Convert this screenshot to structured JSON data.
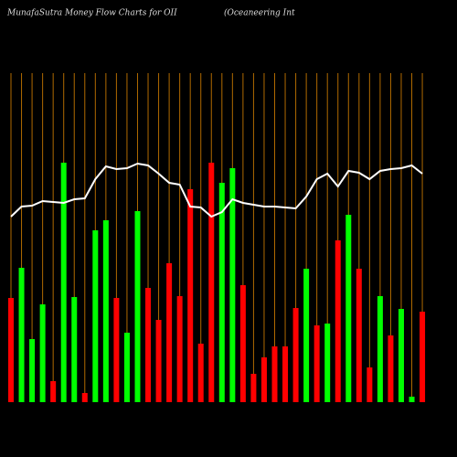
{
  "chart_data": {
    "type": "bar",
    "title": "MunafaSutra  Money Flow  Charts for OII",
    "subtitle": "(Oceaneering Int",
    "ylim": [
      0,
      360
    ],
    "grid": true,
    "grid_color": "#b06a00",
    "background": "#000000",
    "series": [
      {
        "values": [
          114,
          147,
          69,
          107,
          23,
          262,
          115,
          10,
          188,
          199,
          114,
          76,
          209,
          125,
          90,
          152,
          116,
          233,
          64,
          262,
          240,
          256,
          128,
          31,
          49,
          61,
          61,
          103,
          146,
          84,
          86,
          177,
          205,
          146,
          38,
          116,
          73,
          102,
          6,
          99
        ],
        "colors": [
          "#ff0000",
          "#00ff00",
          "#00ff00",
          "#00ff00",
          "#ff0000",
          "#00ff00",
          "#00ff00",
          "#ff0000",
          "#00ff00",
          "#00ff00",
          "#ff0000",
          "#00ff00",
          "#00ff00",
          "#ff0000",
          "#ff0000",
          "#ff0000",
          "#ff0000",
          "#ff0000",
          "#ff0000",
          "#ff0000",
          "#00ff00",
          "#00ff00",
          "#ff0000",
          "#ff0000",
          "#ff0000",
          "#ff0000",
          "#ff0000",
          "#ff0000",
          "#00ff00",
          "#ff0000",
          "#00ff00",
          "#ff0000",
          "#00ff00",
          "#ff0000",
          "#ff0000",
          "#00ff00",
          "#ff0000",
          "#00ff00",
          "#00ff00",
          "#ff0000"
        ]
      },
      {
        "type": "line",
        "color": "#ffffff",
        "values": [
          203,
          214,
          215,
          220,
          219,
          218,
          222,
          223,
          244,
          258,
          255,
          256,
          261,
          259,
          250,
          240,
          238,
          214,
          213,
          203,
          208,
          222,
          218,
          216,
          214,
          214,
          213,
          212,
          225,
          244,
          250,
          236,
          253,
          251,
          244,
          253,
          255,
          256,
          259,
          250
        ]
      }
    ]
  }
}
